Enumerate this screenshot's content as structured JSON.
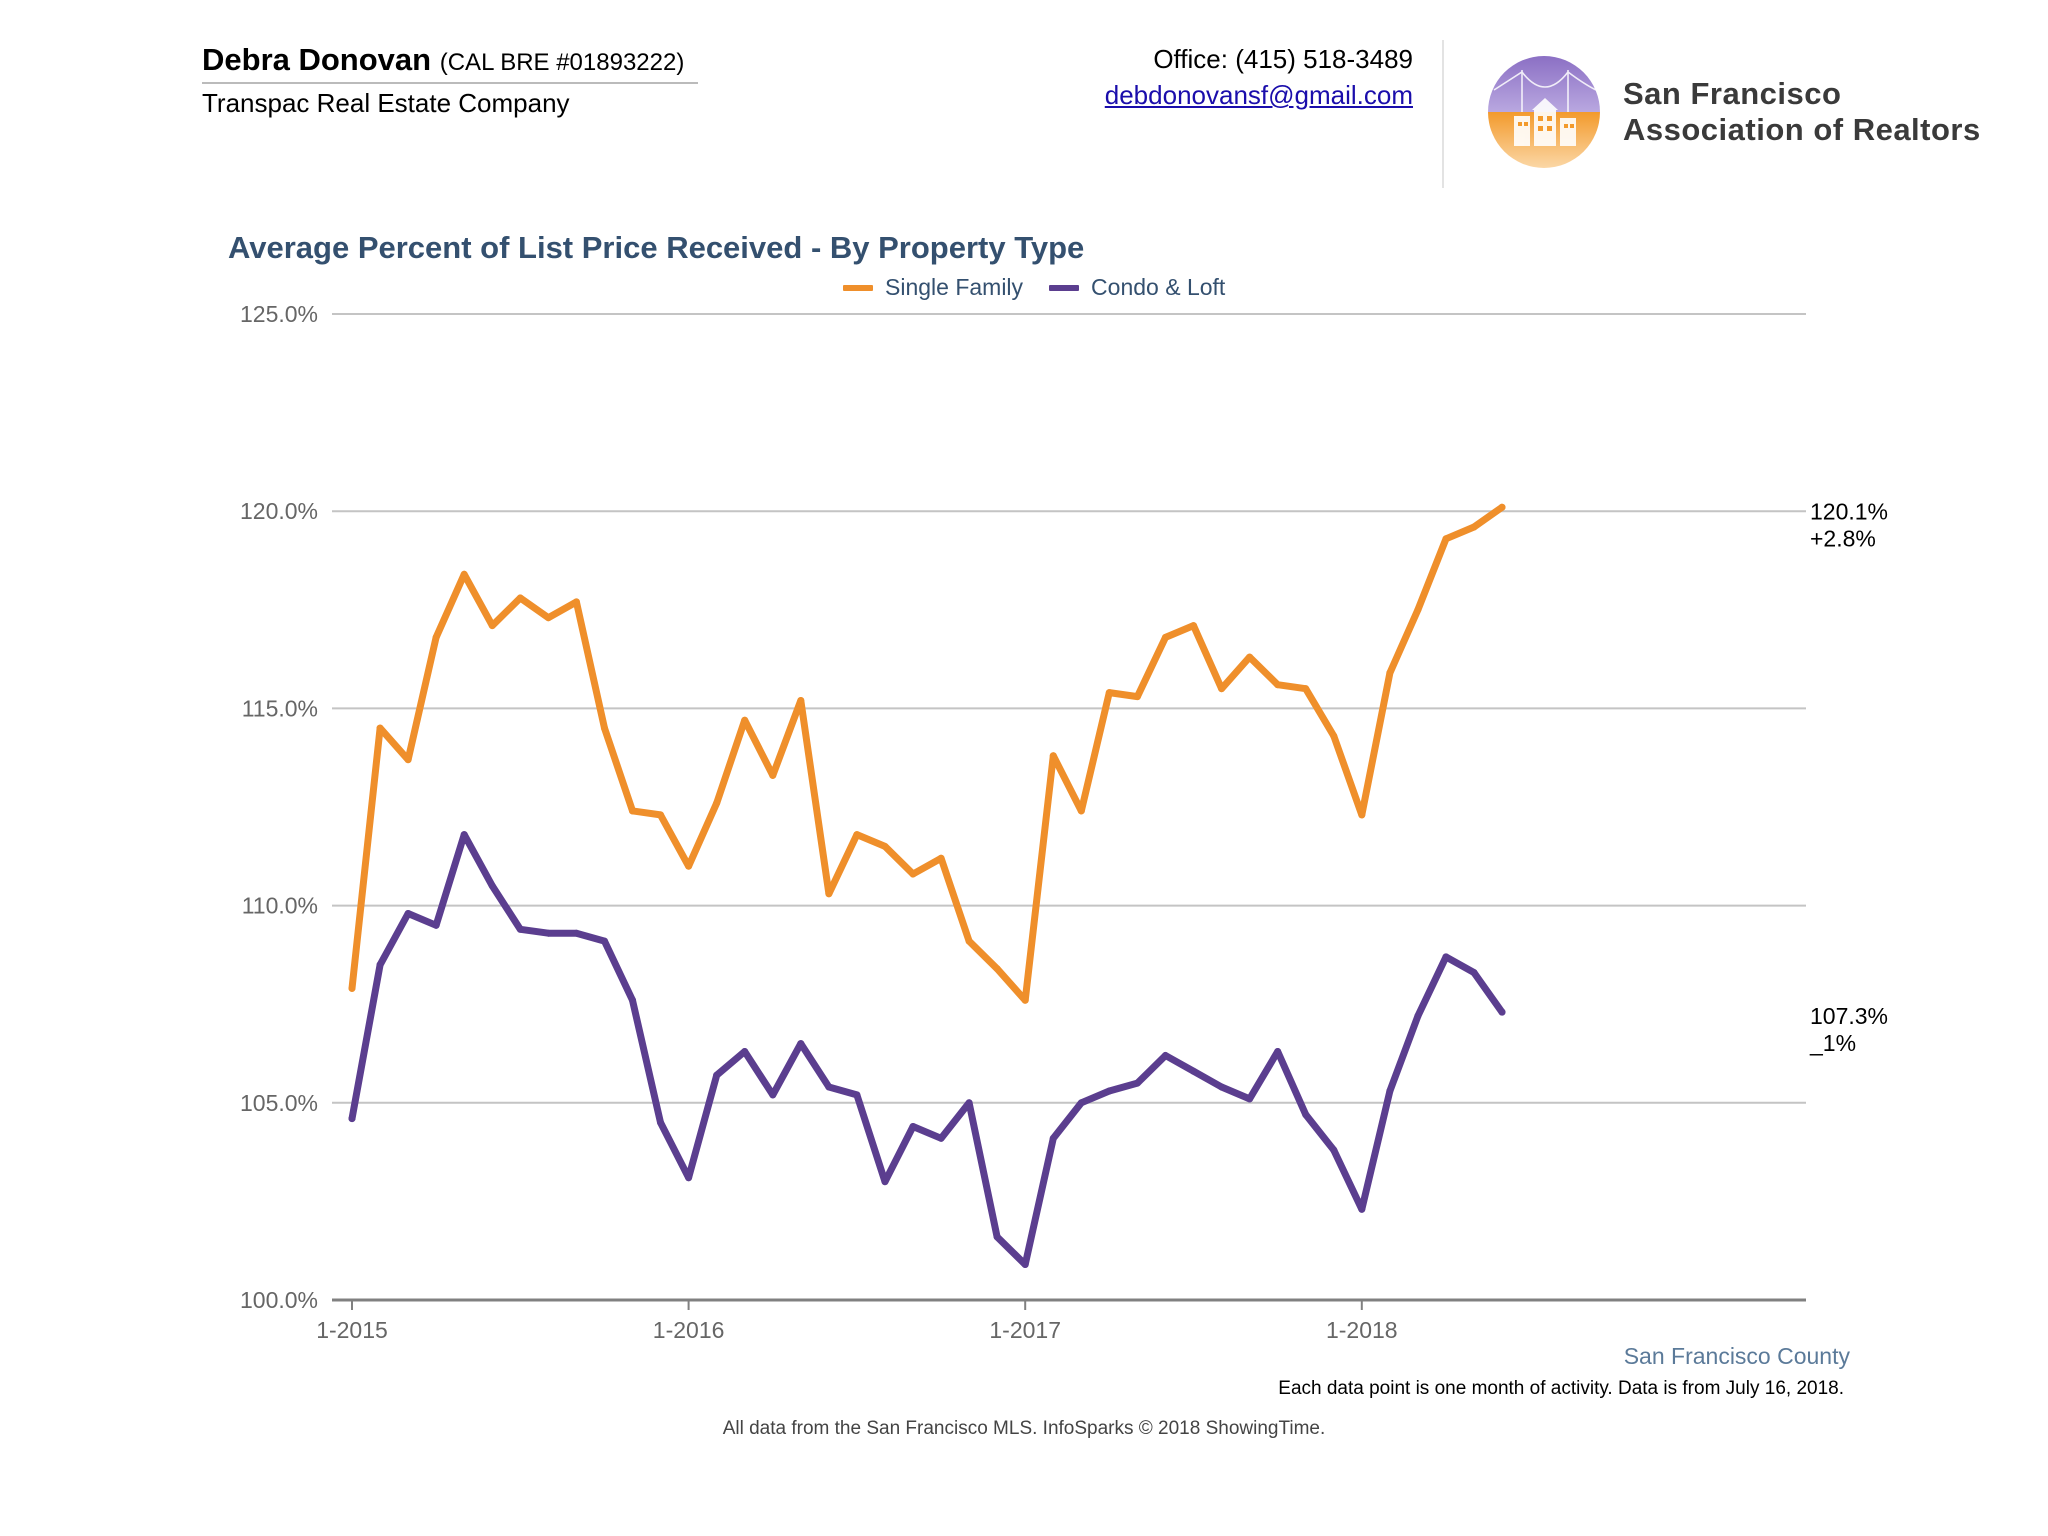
{
  "header": {
    "agent_name": "Debra Donovan",
    "agent_license": "(CAL BRE #01893222)",
    "company": "Transpac Real Estate Company",
    "office_phone": "Office: (415) 518-3489",
    "email": "debdonovansf@gmail.com",
    "logo_line1": "San Francisco",
    "logo_line2": "Association of Realtors"
  },
  "footer": {
    "region": "San Francisco County",
    "footnote": "Each data point is one month of activity. Data is from July 16, 2018.",
    "source": "All data from the San Francisco MLS. InfoSparks © 2018 ShowingTime."
  },
  "chart_data": {
    "type": "line",
    "title": "Average Percent of List Price Received - By Property Type",
    "ylim": [
      100,
      125
    ],
    "yticks": [
      "100.0%",
      "105.0%",
      "110.0%",
      "115.0%",
      "120.0%",
      "125.0%"
    ],
    "ytick_values": [
      100,
      105,
      110,
      115,
      120,
      125
    ],
    "xticks": [
      {
        "index": 0,
        "label": "1-2015"
      },
      {
        "index": 12,
        "label": "1-2016"
      },
      {
        "index": 24,
        "label": "1-2017"
      },
      {
        "index": 36,
        "label": "1-2018"
      }
    ],
    "grid": true,
    "legend_position": "top-center",
    "x": [
      "2015-01",
      "2015-02",
      "2015-03",
      "2015-04",
      "2015-05",
      "2015-06",
      "2015-07",
      "2015-08",
      "2015-09",
      "2015-10",
      "2015-11",
      "2015-12",
      "2016-01",
      "2016-02",
      "2016-03",
      "2016-04",
      "2016-05",
      "2016-06",
      "2016-07",
      "2016-08",
      "2016-09",
      "2016-10",
      "2016-11",
      "2016-12",
      "2017-01",
      "2017-02",
      "2017-03",
      "2017-04",
      "2017-05",
      "2017-06",
      "2017-07",
      "2017-08",
      "2017-09",
      "2017-10",
      "2017-11",
      "2017-12",
      "2018-01",
      "2018-02",
      "2018-03",
      "2018-04",
      "2018-05",
      "2018-06"
    ],
    "series": [
      {
        "name": "Single Family",
        "color": "#ef8f2b",
        "values": [
          107.9,
          114.5,
          113.7,
          116.8,
          118.4,
          117.1,
          117.8,
          117.3,
          117.7,
          114.5,
          112.4,
          112.3,
          111.0,
          112.6,
          114.7,
          113.3,
          115.2,
          110.3,
          111.8,
          111.5,
          110.8,
          111.2,
          109.1,
          108.4,
          107.6,
          113.8,
          112.4,
          115.4,
          115.3,
          116.8,
          117.1,
          115.5,
          116.3,
          115.6,
          115.5,
          114.3,
          112.3,
          115.9,
          117.5,
          119.3,
          119.6,
          120.1
        ],
        "end_label": "120.1%",
        "change_label": "+2.8%"
      },
      {
        "name": "Condo & Loft",
        "color": "#5b3e8f",
        "values": [
          104.6,
          108.5,
          109.8,
          109.5,
          111.8,
          110.5,
          109.4,
          109.3,
          109.3,
          109.1,
          107.6,
          104.5,
          103.1,
          105.7,
          106.3,
          105.2,
          106.5,
          105.4,
          105.2,
          103.0,
          104.4,
          104.1,
          105.0,
          101.6,
          100.9,
          104.1,
          105.0,
          105.3,
          105.5,
          106.2,
          105.8,
          105.4,
          105.1,
          106.3,
          104.7,
          103.8,
          102.3,
          105.3,
          107.2,
          108.7,
          108.3,
          107.3
        ],
        "end_label": "107.3%",
        "change_label": "_1%"
      }
    ]
  }
}
